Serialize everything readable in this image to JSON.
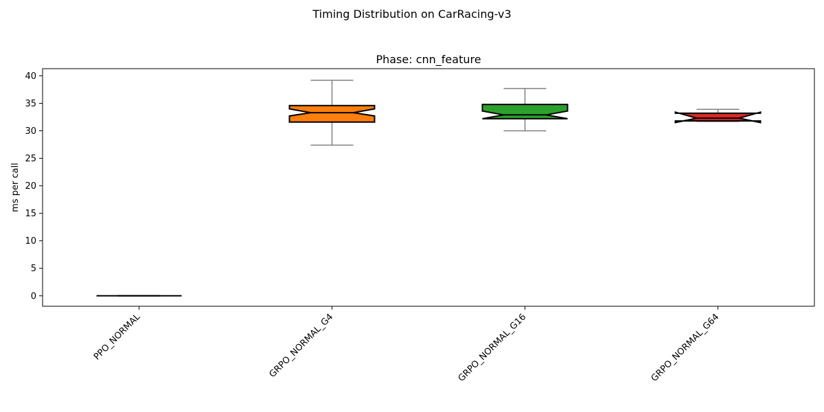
{
  "figure": {
    "suptitle": "Timing Distribution on CarRacing-v3"
  },
  "chart_data": {
    "type": "box",
    "title": "Phase: cnn_feature",
    "xlabel": "",
    "ylabel": "ms per call",
    "ylim": [
      -1.9,
      41.3
    ],
    "yticks": [
      0,
      5,
      10,
      15,
      20,
      25,
      30,
      35,
      40
    ],
    "notched": true,
    "grid": false,
    "categories": [
      "PPO_NORMAL",
      "GRPO_NORMAL_G4",
      "GRPO_NORMAL_G16",
      "GRPO_NORMAL_G64"
    ],
    "boxes": [
      {
        "label": "PPO_NORMAL",
        "color": "#1f77b4",
        "whisker_low": 0.0,
        "q1": 0.0,
        "median": 0.0,
        "q3": 0.0,
        "whisker_high": 0.0,
        "notch_low": 0.0,
        "notch_high": 0.0
      },
      {
        "label": "GRPO_NORMAL_G4",
        "color": "#ff7f0e",
        "whisker_low": 27.4,
        "q1": 31.6,
        "median": 33.3,
        "q3": 34.6,
        "whisker_high": 39.2,
        "notch_low": 32.7,
        "notch_high": 34.0
      },
      {
        "label": "GRPO_NORMAL_G16",
        "color": "#2ca02c",
        "whisker_low": 30.0,
        "q1": 32.2,
        "median": 32.9,
        "q3": 34.8,
        "whisker_high": 37.7,
        "notch_low": 32.2,
        "notch_high": 33.6
      },
      {
        "label": "GRPO_NORMAL_G64",
        "color": "#d62728",
        "whisker_low": 31.7,
        "q1": 31.8,
        "median": 32.3,
        "q3": 33.2,
        "whisker_high": 33.9,
        "notch_low": 31.5,
        "notch_high": 33.4
      }
    ]
  }
}
